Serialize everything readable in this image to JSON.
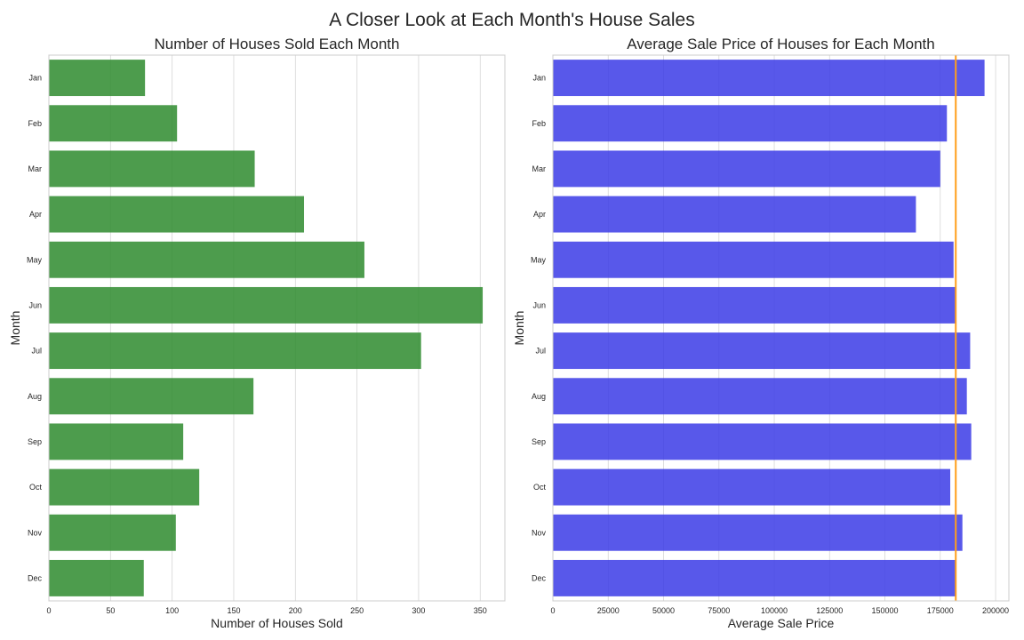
{
  "figure": {
    "suptitle": "A Closer Look at Each Month's House Sales"
  },
  "chart_data": [
    {
      "type": "bar",
      "orientation": "horizontal",
      "title": "Number of Houses Sold Each Month",
      "xlabel": "Number of Houses Sold",
      "ylabel": "Month",
      "categories": [
        "Jan",
        "Feb",
        "Mar",
        "Apr",
        "May",
        "Jun",
        "Jul",
        "Aug",
        "Sep",
        "Oct",
        "Nov",
        "Dec"
      ],
      "values": [
        78,
        104,
        167,
        207,
        256,
        352,
        302,
        166,
        109,
        122,
        103,
        77
      ],
      "xlim": [
        0,
        370
      ],
      "xticks": [
        0,
        50,
        100,
        150,
        200,
        250,
        300,
        350
      ],
      "grid": true,
      "bar_color": "#2e8b2e"
    },
    {
      "type": "bar",
      "orientation": "horizontal",
      "title": "Average Sale Price of Houses for Each Month",
      "xlabel": "Average Sale Price",
      "ylabel": "Month",
      "categories": [
        "Jan",
        "Feb",
        "Mar",
        "Apr",
        "May",
        "Jun",
        "Jul",
        "Aug",
        "Sep",
        "Oct",
        "Nov",
        "Dec"
      ],
      "values": [
        195000,
        178000,
        175000,
        164000,
        181000,
        182000,
        188500,
        187000,
        189000,
        179500,
        185000,
        182000
      ],
      "xlim": [
        0,
        206000
      ],
      "xticks": [
        0,
        25000,
        50000,
        75000,
        100000,
        125000,
        150000,
        175000,
        200000
      ],
      "grid": true,
      "bar_color": "#3b3be6",
      "reference_line": {
        "value": 182000,
        "color": "#ff9f1c"
      }
    }
  ]
}
